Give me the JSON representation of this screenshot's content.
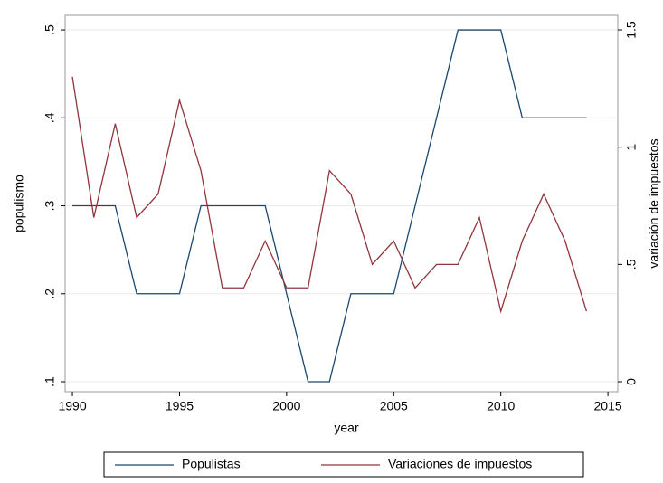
{
  "chart_data": {
    "type": "line",
    "x_label": "year",
    "y_label": "populismo",
    "y2_label": "variación de impuestos",
    "x": [
      1990,
      1991,
      1992,
      1993,
      1994,
      1995,
      1996,
      1997,
      1998,
      1999,
      2000,
      2001,
      2002,
      2003,
      2004,
      2005,
      2006,
      2007,
      2008,
      2009,
      2010,
      2011,
      2012,
      2013,
      2014
    ],
    "series": [
      {
        "name": "Populistas",
        "color": "#1a476f",
        "values": [
          0.3,
          0.3,
          0.3,
          0.2,
          0.2,
          0.2,
          0.3,
          0.3,
          0.3,
          0.3,
          0.2,
          0.1,
          0.1,
          0.2,
          0.2,
          0.2,
          0.3,
          0.4,
          0.5,
          0.5,
          0.5,
          0.4,
          0.4,
          0.4,
          0.4
        ]
      },
      {
        "name": "Variaciones de impuestos",
        "color": "#90353b",
        "axis": "y2",
        "values": [
          1.3,
          0.7,
          1.1,
          0.7,
          0.8,
          1.2,
          0.9,
          0.4,
          0.4,
          0.6,
          0.4,
          0.4,
          0.9,
          0.8,
          0.5,
          0.6,
          0.4,
          0.5,
          0.5,
          0.7,
          0.3,
          0.6,
          0.8,
          0.6,
          0.3
        ]
      }
    ],
    "xlim": [
      1989.66,
      2015.46
    ],
    "xticks": [
      1990,
      1995,
      2000,
      2005,
      2010,
      2015
    ],
    "ylim": [
      0.0887,
      0.5165
    ],
    "yticks": [
      {
        "value": 0.1,
        "label": ".1"
      },
      {
        "value": 0.2,
        "label": ".2"
      },
      {
        "value": 0.3,
        "label": ".3"
      },
      {
        "value": 0.4,
        "label": ".4"
      },
      {
        "value": 0.5,
        "label": ".5"
      }
    ],
    "y2lim": [
      -0.0424,
      1.5618
    ],
    "y2ticks": [
      0,
      {
        "value": 0.5,
        "label": ".5"
      },
      1,
      1.5
    ],
    "grid": true,
    "legend": "bottom"
  }
}
